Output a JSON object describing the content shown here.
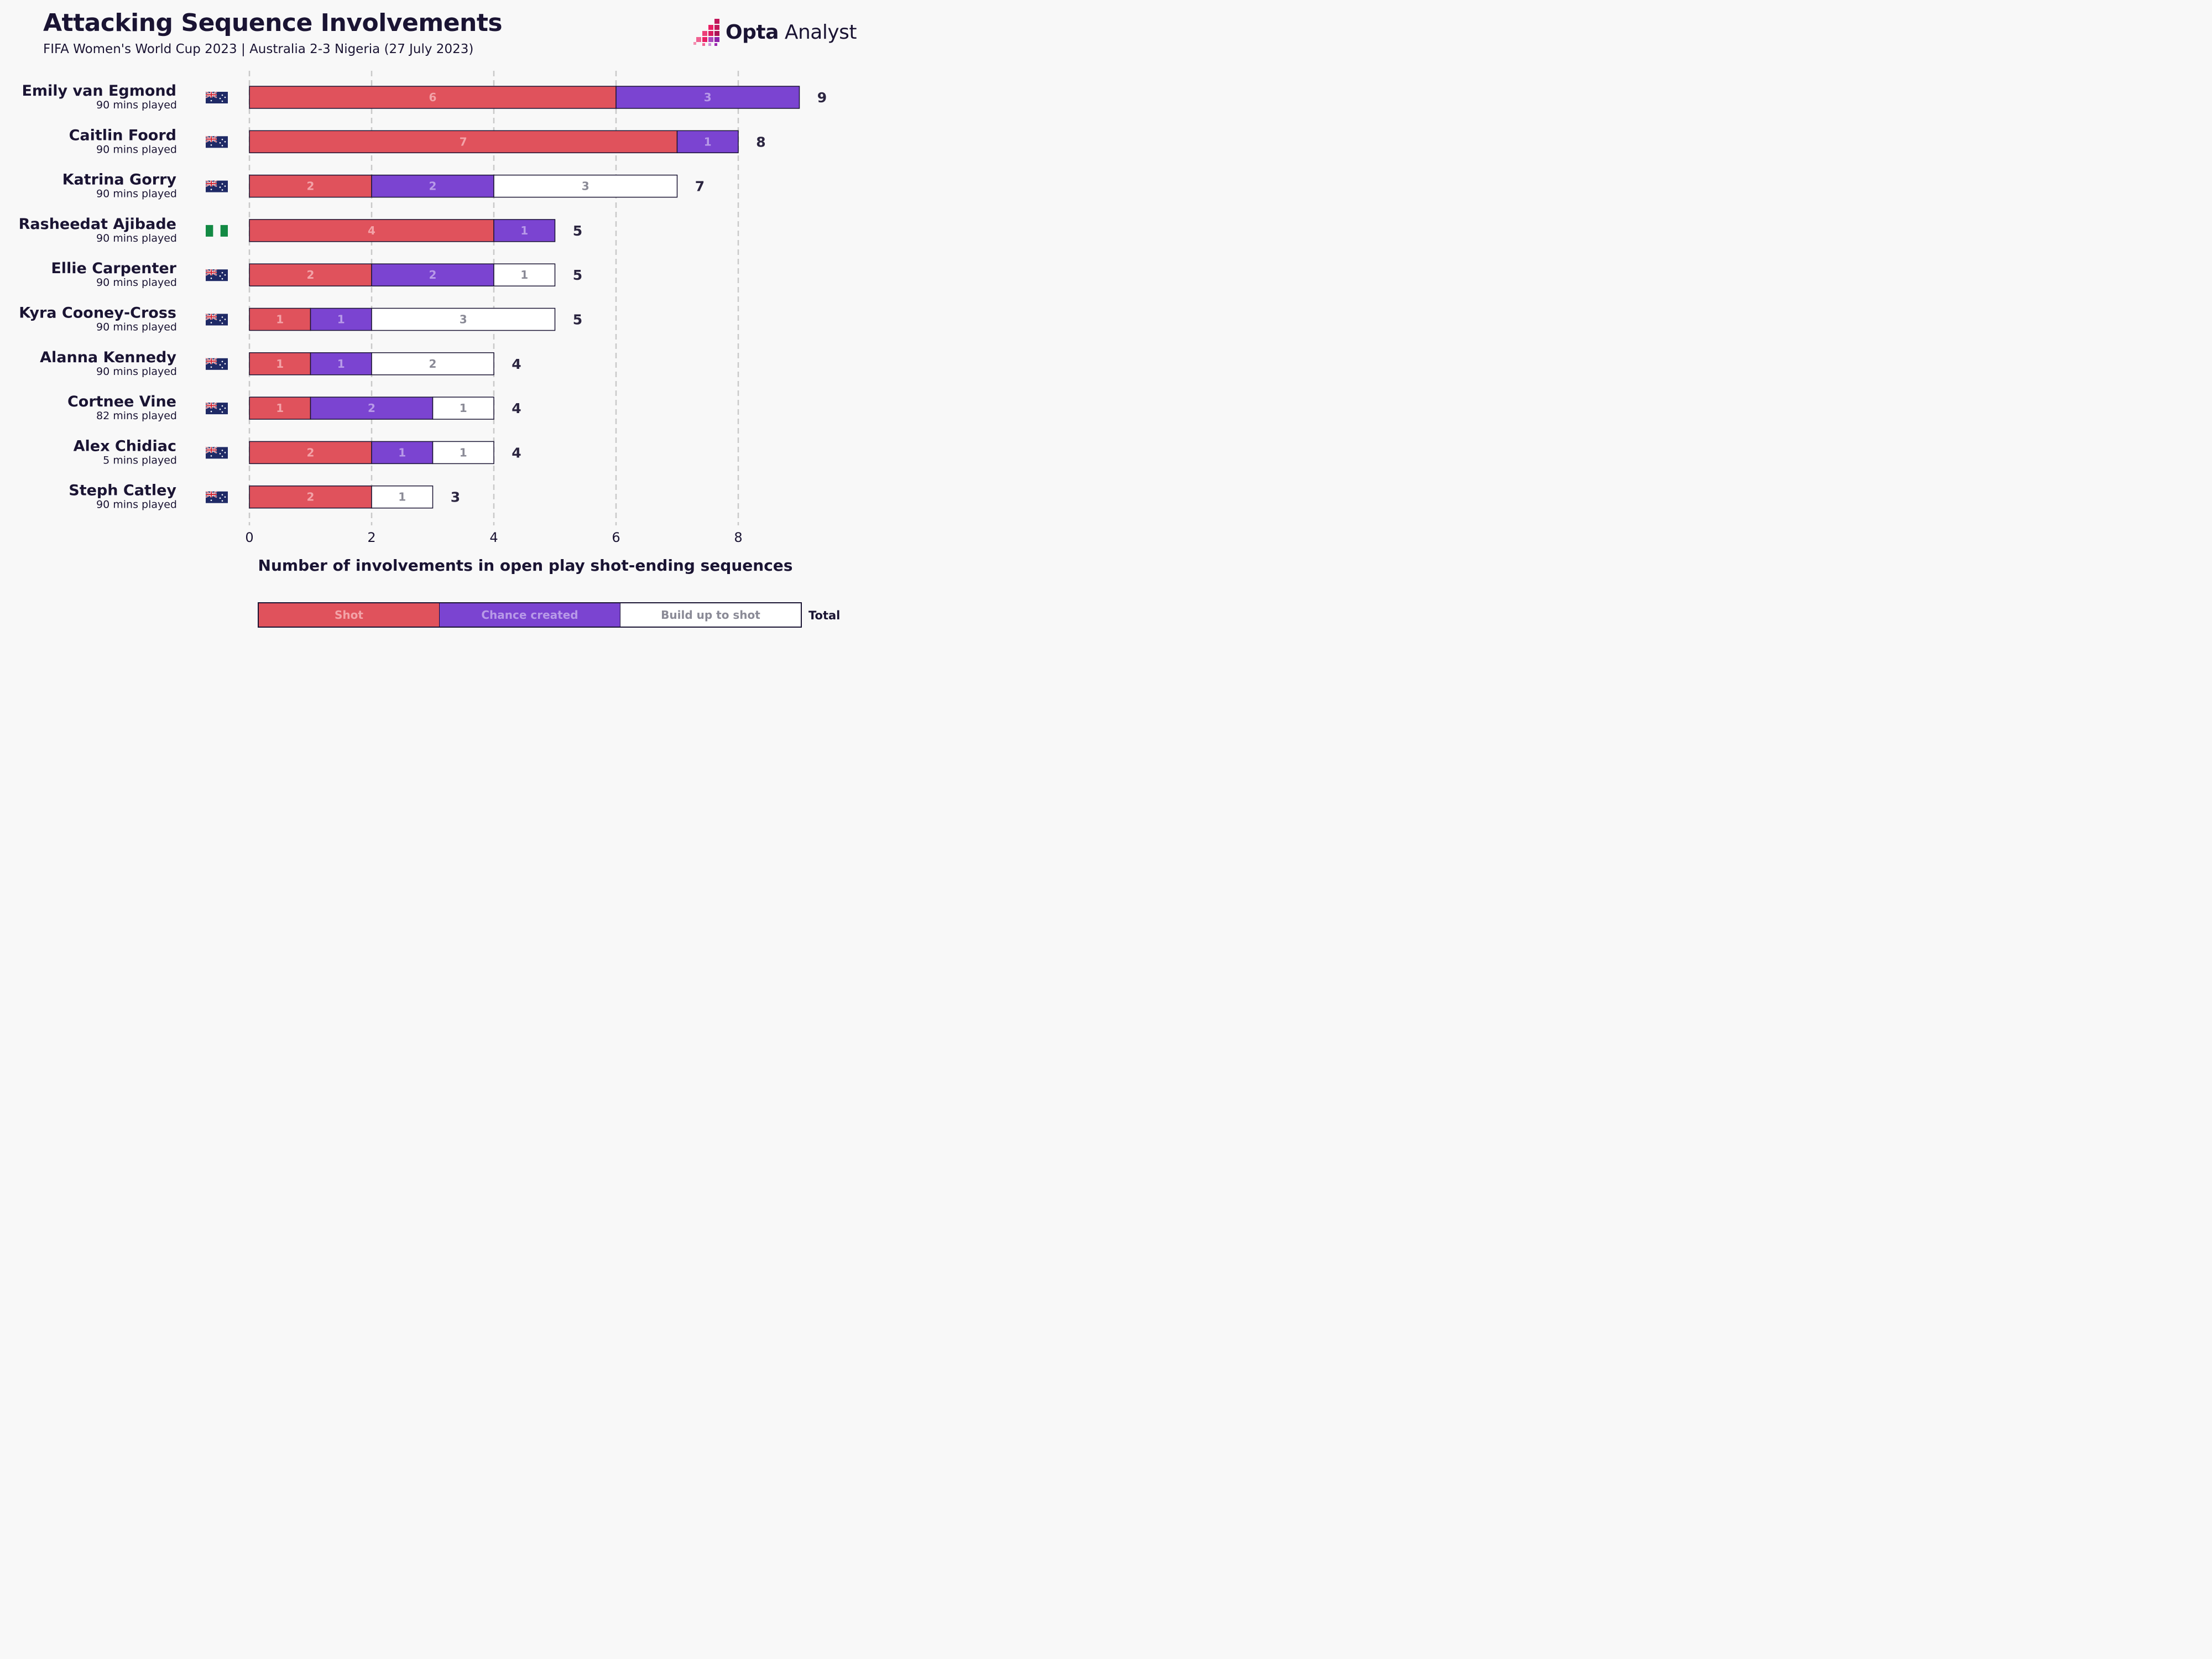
{
  "header": {
    "title": "Attacking Sequence Involvements",
    "subtitle": "FIFA Women's World Cup 2023 | Australia 2-3 Nigeria (27 July 2023)",
    "logo_bold": "Opta",
    "logo_light": "Analyst"
  },
  "colors": {
    "shot": "#e0525c",
    "chance": "#7b44d1",
    "buildup": "#ffffff",
    "shot_text": "#f3a3a8",
    "chance_text": "#b89ae8",
    "buildup_text": "#8a8a96",
    "gridline": "#c9c9c9",
    "flag_australia": "#1f2a66",
    "flag_nigeria": "#138a44"
  },
  "chart_data": {
    "type": "bar",
    "orientation": "horizontal",
    "stacked": true,
    "categories": [
      "Emily van Egmond",
      "Caitlin Foord",
      "Katrina Gorry",
      "Rasheedat Ajibade",
      "Ellie Carpenter",
      "Kyra Cooney-Cross",
      "Alanna Kennedy",
      "Cortnee Vine",
      "Alex Chidiac",
      "Steph Catley"
    ],
    "minutes": [
      "90 mins played",
      "90 mins played",
      "90 mins played",
      "90 mins played",
      "90 mins played",
      "90 mins played",
      "90 mins played",
      "82 mins played",
      "5 mins played",
      "90 mins played"
    ],
    "flags": [
      "australia",
      "australia",
      "australia",
      "nigeria",
      "australia",
      "australia",
      "australia",
      "australia",
      "australia",
      "australia"
    ],
    "series": [
      {
        "name": "Shot",
        "key": "shot",
        "values": [
          6,
          7,
          2,
          4,
          2,
          1,
          1,
          1,
          2,
          2
        ]
      },
      {
        "name": "Chance created",
        "key": "chance",
        "values": [
          3,
          1,
          2,
          1,
          2,
          1,
          1,
          2,
          1,
          0
        ]
      },
      {
        "name": "Build up to shot",
        "key": "buildup",
        "values": [
          0,
          0,
          3,
          0,
          1,
          3,
          2,
          1,
          1,
          1
        ]
      }
    ],
    "totals": [
      9,
      8,
      7,
      5,
      5,
      5,
      4,
      4,
      4,
      3
    ],
    "xlabel": "Number of involvements in open play shot-ending sequences",
    "xticks": [
      0,
      2,
      4,
      6,
      8
    ],
    "xlim": [
      0,
      9
    ],
    "grid": true,
    "legend_position": "bottom",
    "legend_total_label": "Total"
  }
}
